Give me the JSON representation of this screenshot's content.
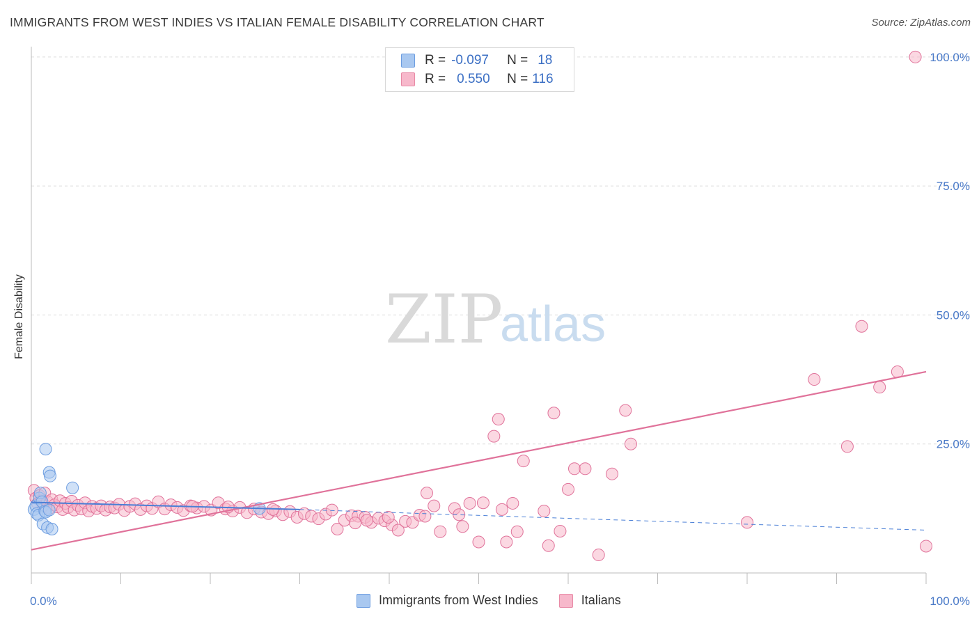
{
  "header": {
    "title": "IMMIGRANTS FROM WEST INDIES VS ITALIAN FEMALE DISABILITY CORRELATION CHART",
    "source": "Source: ZipAtlas.com"
  },
  "watermark": {
    "zip": "ZIP",
    "atlas": "atlas"
  },
  "legend": {
    "rows": [
      {
        "r_label": "R =",
        "r_value": "-0.097",
        "n_label": "N =",
        "n_value": "18",
        "color": "#a9c8f0",
        "border": "#6d9de0"
      },
      {
        "r_label": "R =",
        "r_value": "0.550",
        "n_label": "N =",
        "n_value": "116",
        "color": "#f7b8cb",
        "border": "#e88aa6"
      }
    ]
  },
  "bottom_legend": {
    "items": [
      {
        "label": "Immigrants from West Indies",
        "color": "#a9c8f0",
        "border": "#6d9de0"
      },
      {
        "label": "Italians",
        "color": "#f7b8cb",
        "border": "#e88aa6"
      }
    ]
  },
  "chart_data": {
    "type": "scatter",
    "title": "IMMIGRANTS FROM WEST INDIES VS ITALIAN FEMALE DISABILITY CORRELATION CHART",
    "xlabel": "",
    "ylabel": "Female Disability",
    "xlim": [
      0,
      100
    ],
    "ylim": [
      0,
      102
    ],
    "x_tick_labels": [
      "0.0%",
      "100.0%"
    ],
    "y_ticks": [
      25,
      50,
      75,
      100
    ],
    "y_tick_labels": [
      "25.0%",
      "50.0%",
      "75.0%",
      "100.0%"
    ],
    "grid": true,
    "series": [
      {
        "name": "Immigrants from West Indies",
        "color": "#6d9de0",
        "fill": "#a9c8f0",
        "trend": {
          "x0": 0,
          "y0": 13.7,
          "x1": 30,
          "y1": 12.3,
          "dashed_to": 100,
          "y_end": 8.3
        },
        "points": [
          [
            0.3,
            12.3
          ],
          [
            0.5,
            13.0
          ],
          [
            0.6,
            11.5
          ],
          [
            0.8,
            11.2
          ],
          [
            0.9,
            14.5
          ],
          [
            1.0,
            15.5
          ],
          [
            1.2,
            13.8
          ],
          [
            1.3,
            9.5
          ],
          [
            1.5,
            12.0
          ],
          [
            1.6,
            11.8
          ],
          [
            1.8,
            8.8
          ],
          [
            2.0,
            12.2
          ],
          [
            1.6,
            24.0
          ],
          [
            2.0,
            19.5
          ],
          [
            2.1,
            18.8
          ],
          [
            2.3,
            8.5
          ],
          [
            4.6,
            16.5
          ],
          [
            25.5,
            12.5
          ]
        ]
      },
      {
        "name": "Italians",
        "color": "#e0729a",
        "fill": "#f7b8cb",
        "trend": {
          "x0": 0,
          "y0": 4.5,
          "x1": 100,
          "y1": 39.0
        },
        "points": [
          [
            0.3,
            16.0
          ],
          [
            0.5,
            14.5
          ],
          [
            0.7,
            13.5
          ],
          [
            0.9,
            15.0
          ],
          [
            1.1,
            14.0
          ],
          [
            1.3,
            13.0
          ],
          [
            1.5,
            15.5
          ],
          [
            1.8,
            13.8
          ],
          [
            2.0,
            12.5
          ],
          [
            2.3,
            14.2
          ],
          [
            2.6,
            13.2
          ],
          [
            2.9,
            12.8
          ],
          [
            3.2,
            14.0
          ],
          [
            3.5,
            12.3
          ],
          [
            3.8,
            13.5
          ],
          [
            4.1,
            12.7
          ],
          [
            4.5,
            13.9
          ],
          [
            4.8,
            12.2
          ],
          [
            5.2,
            13.1
          ],
          [
            5.6,
            12.4
          ],
          [
            6.0,
            13.6
          ],
          [
            6.4,
            12.0
          ],
          [
            6.8,
            12.9
          ],
          [
            7.3,
            12.5
          ],
          [
            7.8,
            13.0
          ],
          [
            8.3,
            12.2
          ],
          [
            8.8,
            12.8
          ],
          [
            9.3,
            12.6
          ],
          [
            9.8,
            13.3
          ],
          [
            10.4,
            12.1
          ],
          [
            11.0,
            12.9
          ],
          [
            11.6,
            13.4
          ],
          [
            12.2,
            12.3
          ],
          [
            12.9,
            13.0
          ],
          [
            13.5,
            12.5
          ],
          [
            14.2,
            13.8
          ],
          [
            14.9,
            12.4
          ],
          [
            15.6,
            13.2
          ],
          [
            16.3,
            12.7
          ],
          [
            17.0,
            12.1
          ],
          [
            17.8,
            13.0
          ],
          [
            18.5,
            12.6
          ],
          [
            19.3,
            12.9
          ],
          [
            20.1,
            12.2
          ],
          [
            20.9,
            13.6
          ],
          [
            21.7,
            12.4
          ],
          [
            22.5,
            12.0
          ],
          [
            23.3,
            12.7
          ],
          [
            24.1,
            11.7
          ],
          [
            24.9,
            12.4
          ],
          [
            25.7,
            11.8
          ],
          [
            26.5,
            11.5
          ],
          [
            27.3,
            12.0
          ],
          [
            28.1,
            11.3
          ],
          [
            28.9,
            11.9
          ],
          [
            29.7,
            10.8
          ],
          [
            30.5,
            11.5
          ],
          [
            31.3,
            11.0
          ],
          [
            32.1,
            10.5
          ],
          [
            32.9,
            11.4
          ],
          [
            33.6,
            12.2
          ],
          [
            34.2,
            8.5
          ],
          [
            35.0,
            10.2
          ],
          [
            35.8,
            11.1
          ],
          [
            36.5,
            11.0
          ],
          [
            37.3,
            10.8
          ],
          [
            38.0,
            9.8
          ],
          [
            38.8,
            10.6
          ],
          [
            39.5,
            10.1
          ],
          [
            40.3,
            9.3
          ],
          [
            41.0,
            8.3
          ],
          [
            41.8,
            10.0
          ],
          [
            42.6,
            9.8
          ],
          [
            43.4,
            11.2
          ],
          [
            44.2,
            15.5
          ],
          [
            45.0,
            13.0
          ],
          [
            47.3,
            12.5
          ],
          [
            47.8,
            11.3
          ],
          [
            48.2,
            9.0
          ],
          [
            49.0,
            13.5
          ],
          [
            50.0,
            6.0
          ],
          [
            50.5,
            13.6
          ],
          [
            51.7,
            26.5
          ],
          [
            52.2,
            29.8
          ],
          [
            52.6,
            12.3
          ],
          [
            53.1,
            6.0
          ],
          [
            53.8,
            13.5
          ],
          [
            54.3,
            8.0
          ],
          [
            55.0,
            21.7
          ],
          [
            57.3,
            12.0
          ],
          [
            57.8,
            5.3
          ],
          [
            58.4,
            31.0
          ],
          [
            59.1,
            8.1
          ],
          [
            60.0,
            16.2
          ],
          [
            60.7,
            20.2
          ],
          [
            61.9,
            20.2
          ],
          [
            63.4,
            3.5
          ],
          [
            64.9,
            19.2
          ],
          [
            66.4,
            31.5
          ],
          [
            67.0,
            25.0
          ],
          [
            44.0,
            11.0
          ],
          [
            45.7,
            8.0
          ],
          [
            39.9,
            10.8
          ],
          [
            37.5,
            10.2
          ],
          [
            36.2,
            9.7
          ],
          [
            27.0,
            12.3
          ],
          [
            22.0,
            12.8
          ],
          [
            18.0,
            12.9
          ],
          [
            80.0,
            9.8
          ],
          [
            87.5,
            37.5
          ],
          [
            91.2,
            24.5
          ],
          [
            92.8,
            47.8
          ],
          [
            94.8,
            36.0
          ],
          [
            96.8,
            39.0
          ],
          [
            100.0,
            5.2
          ],
          [
            98.8,
            100.0
          ]
        ]
      }
    ]
  }
}
